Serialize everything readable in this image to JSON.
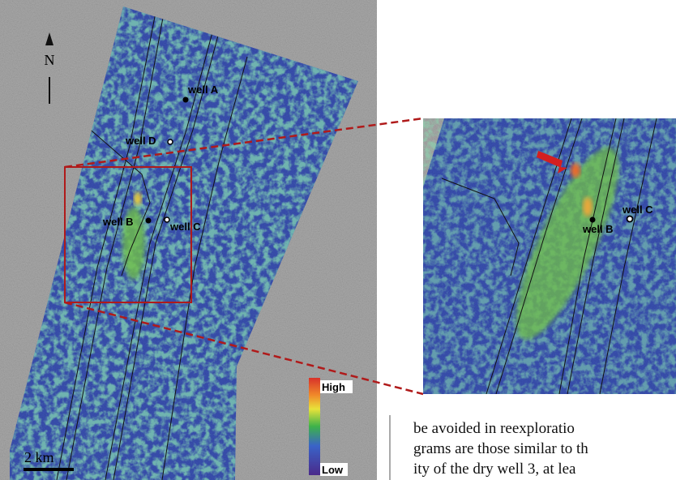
{
  "map": {
    "north_label": "N",
    "wells": [
      "well A",
      "well D",
      "well B",
      "well C"
    ],
    "legend": {
      "high": "High",
      "low": "Low"
    },
    "scale_bar": "2 km"
  },
  "inset": {
    "wells": [
      "well C",
      "well B"
    ]
  },
  "body_text": {
    "lines": [
      "be avoided in reexploratio",
      "grams are those similar to th",
      "ity of the dry well 3, at lea"
    ]
  }
}
